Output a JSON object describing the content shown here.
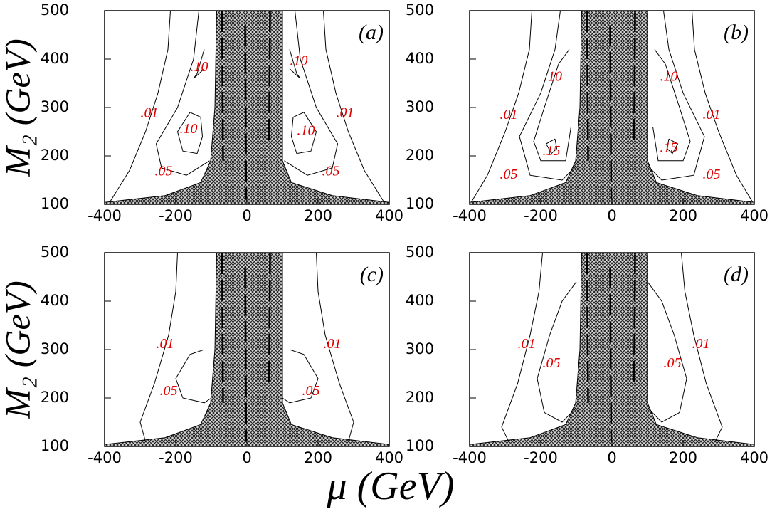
{
  "figure": {
    "xlabel": "μ (GeV)"
  },
  "chart_data": [
    {
      "type": "contour",
      "panel_label": "(a)",
      "ylabel": "M₂ (GeV)",
      "xlim": [
        -400,
        400
      ],
      "ylim": [
        100,
        500
      ],
      "xticks": [
        -400,
        -200,
        0,
        200,
        400
      ],
      "yticks": [
        100,
        200,
        300,
        400,
        500
      ],
      "contour_labels": [
        {
          "value": 0.01,
          "label": ".01"
        },
        {
          "value": 0.1,
          "label": ".10"
        },
        {
          "value": 0.1,
          "label": ".10"
        },
        {
          "value": 0.05,
          "label": ".05"
        },
        {
          "value": 0.1,
          "label": ".10"
        },
        {
          "value": 0.01,
          "label": ".01"
        },
        {
          "value": 0.1,
          "label": ".10"
        },
        {
          "value": 0.05,
          "label": ".05"
        }
      ]
    },
    {
      "type": "contour",
      "panel_label": "(b)",
      "xlim": [
        -400,
        400
      ],
      "ylim": [
        100,
        500
      ],
      "xticks": [
        -400,
        -200,
        0,
        200,
        400
      ],
      "yticks": [
        100,
        200,
        300,
        400,
        500
      ],
      "contour_labels": [
        {
          "value": 0.01,
          "label": ".01"
        },
        {
          "value": 0.1,
          "label": ".10"
        },
        {
          "value": 0.15,
          "label": ".15"
        },
        {
          "value": 0.05,
          "label": ".05"
        },
        {
          "value": 0.1,
          "label": ".10"
        },
        {
          "value": 0.01,
          "label": ".01"
        },
        {
          "value": 0.15,
          "label": ".15"
        },
        {
          "value": 0.05,
          "label": ".05"
        }
      ]
    },
    {
      "type": "contour",
      "panel_label": "(c)",
      "ylabel": "M₂ (GeV)",
      "xlim": [
        -400,
        400
      ],
      "ylim": [
        100,
        500
      ],
      "xticks": [
        -400,
        -200,
        0,
        200,
        400
      ],
      "yticks": [
        100,
        200,
        300,
        400,
        500
      ],
      "contour_labels": [
        {
          "value": 0.01,
          "label": ".01"
        },
        {
          "value": 0.05,
          "label": ".05"
        },
        {
          "value": 0.05,
          "label": ".05"
        },
        {
          "value": 0.01,
          "label": ".01"
        }
      ]
    },
    {
      "type": "contour",
      "panel_label": "(d)",
      "xlim": [
        -400,
        400
      ],
      "ylim": [
        100,
        500
      ],
      "xticks": [
        -400,
        -200,
        0,
        200,
        400
      ],
      "yticks": [
        100,
        200,
        300,
        400,
        500
      ],
      "contour_labels": [
        {
          "value": 0.01,
          "label": ".01"
        },
        {
          "value": 0.05,
          "label": ".05"
        },
        {
          "value": 0.05,
          "label": ".05"
        },
        {
          "value": 0.01,
          "label": ".01"
        }
      ]
    }
  ]
}
